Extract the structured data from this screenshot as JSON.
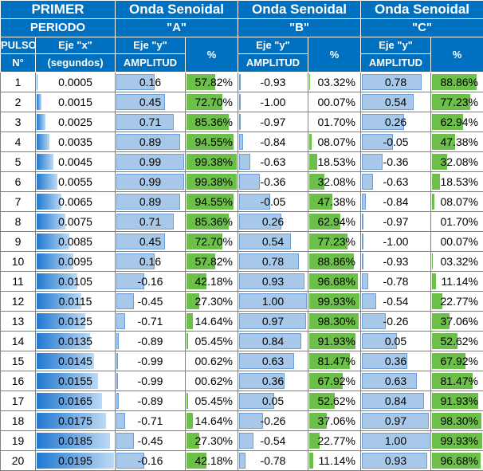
{
  "header": {
    "periodo_line1": "PRIMER",
    "periodo_line2": "PERIODO",
    "wave_a_line1": "Onda Senoidal",
    "wave_a_line2": "\"A\"",
    "wave_b_line1": "Onda Senoidal",
    "wave_b_line2": "\"B\"",
    "wave_c_line1": "Onda Senoidal",
    "wave_c_line2": "\"C\"",
    "pulso_line1": "PULSO",
    "pulso_line2": "N°",
    "x_line1": "Eje \"x\"",
    "x_line2": "(segundos)",
    "y_line1": "Eje \"y\"",
    "y_line2": "AMPLITUD",
    "pct": "%"
  },
  "colors": {
    "header_bg": "#0070c0",
    "pct_bar": "#6cc04a",
    "amp_bar": "#a8c8ea",
    "x_bar": "#1f78d1"
  },
  "rows": [
    {
      "n": "1",
      "x": "0.0005",
      "a": "0.16",
      "ap": "57.82%",
      "b": "-0.93",
      "bp": "03.32%",
      "c": "0.78",
      "cp": "88.86%"
    },
    {
      "n": "2",
      "x": "0.0015",
      "a": "0.45",
      "ap": "72.70%",
      "b": "-1.00",
      "bp": "00.07%",
      "c": "0.54",
      "cp": "77.23%"
    },
    {
      "n": "3",
      "x": "0.0025",
      "a": "0.71",
      "ap": "85.36%",
      "b": "-0.97",
      "bp": "01.70%",
      "c": "0.26",
      "cp": "62.94%"
    },
    {
      "n": "4",
      "x": "0.0035",
      "a": "0.89",
      "ap": "94.55%",
      "b": "-0.84",
      "bp": "08.07%",
      "c": "-0.05",
      "cp": "47.38%"
    },
    {
      "n": "5",
      "x": "0.0045",
      "a": "0.99",
      "ap": "99.38%",
      "b": "-0.63",
      "bp": "18.53%",
      "c": "-0.36",
      "cp": "32.08%"
    },
    {
      "n": "6",
      "x": "0.0055",
      "a": "0.99",
      "ap": "99.38%",
      "b": "-0.36",
      "bp": "32.08%",
      "c": "-0.63",
      "cp": "18.53%"
    },
    {
      "n": "7",
      "x": "0.0065",
      "a": "0.89",
      "ap": "94.55%",
      "b": "-0.05",
      "bp": "47.38%",
      "c": "-0.84",
      "cp": "08.07%"
    },
    {
      "n": "8",
      "x": "0.0075",
      "a": "0.71",
      "ap": "85.36%",
      "b": "0.26",
      "bp": "62.94%",
      "c": "-0.97",
      "cp": "01.70%"
    },
    {
      "n": "9",
      "x": "0.0085",
      "a": "0.45",
      "ap": "72.70%",
      "b": "0.54",
      "bp": "77.23%",
      "c": "-1.00",
      "cp": "00.07%"
    },
    {
      "n": "10",
      "x": "0.0095",
      "a": "0.16",
      "ap": "57.82%",
      "b": "0.78",
      "bp": "88.86%",
      "c": "-0.93",
      "cp": "03.32%"
    },
    {
      "n": "11",
      "x": "0.0105",
      "a": "-0.16",
      "ap": "42.18%",
      "b": "0.93",
      "bp": "96.68%",
      "c": "-0.78",
      "cp": "11.14%"
    },
    {
      "n": "12",
      "x": "0.0115",
      "a": "-0.45",
      "ap": "27.30%",
      "b": "1.00",
      "bp": "99.93%",
      "c": "-0.54",
      "cp": "22.77%"
    },
    {
      "n": "13",
      "x": "0.0125",
      "a": "-0.71",
      "ap": "14.64%",
      "b": "0.97",
      "bp": "98.30%",
      "c": "-0.26",
      "cp": "37.06%"
    },
    {
      "n": "14",
      "x": "0.0135",
      "a": "-0.89",
      "ap": "05.45%",
      "b": "0.84",
      "bp": "91.93%",
      "c": "0.05",
      "cp": "52.62%"
    },
    {
      "n": "15",
      "x": "0.0145",
      "a": "-0.99",
      "ap": "00.62%",
      "b": "0.63",
      "bp": "81.47%",
      "c": "0.36",
      "cp": "67.92%"
    },
    {
      "n": "16",
      "x": "0.0155",
      "a": "-0.99",
      "ap": "00.62%",
      "b": "0.36",
      "bp": "67.92%",
      "c": "0.63",
      "cp": "81.47%"
    },
    {
      "n": "17",
      "x": "0.0165",
      "a": "-0.89",
      "ap": "05.45%",
      "b": "0.05",
      "bp": "52.62%",
      "c": "0.84",
      "cp": "91.93%"
    },
    {
      "n": "18",
      "x": "0.0175",
      "a": "-0.71",
      "ap": "14.64%",
      "b": "-0.26",
      "bp": "37.06%",
      "c": "0.97",
      "cp": "98.30%"
    },
    {
      "n": "19",
      "x": "0.0185",
      "a": "-0.45",
      "ap": "27.30%",
      "b": "-0.54",
      "bp": "22.77%",
      "c": "1.00",
      "cp": "99.93%"
    },
    {
      "n": "20",
      "x": "0.0195",
      "a": "-0.16",
      "ap": "42.18%",
      "b": "-0.78",
      "bp": "11.14%",
      "c": "0.93",
      "cp": "96.68%"
    }
  ]
}
